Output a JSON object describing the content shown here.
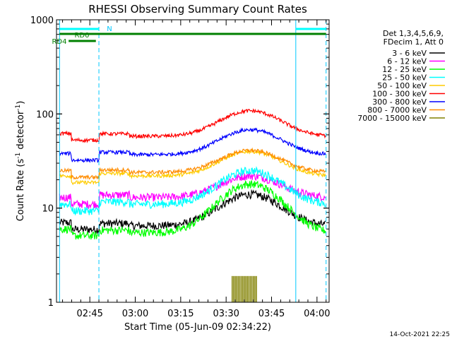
{
  "chart_data": {
    "type": "line",
    "title": "RHESSI Observing Summary Count Rates",
    "xlabel": "Start Time (05-Jun-09 02:34:22)",
    "ylabel_main": "Count Rate (s",
    "ylabel_sup1": "-1",
    "ylabel_mid": " detector",
    "ylabel_sup2": "-1",
    "ylabel_end": ")",
    "yscale": "log",
    "ylim": [
      1,
      1000
    ],
    "xlim_minutes": [
      0,
      90
    ],
    "y_ticks": [
      {
        "value": 1,
        "label": "1"
      },
      {
        "value": 10,
        "label": "10"
      },
      {
        "value": 100,
        "label": "100"
      },
      {
        "value": 1000,
        "label": "1000"
      }
    ],
    "x_ticks": [
      {
        "minute": 11,
        "label": "02:45"
      },
      {
        "minute": 26,
        "label": "03:00"
      },
      {
        "minute": 41,
        "label": "03:15"
      },
      {
        "minute": 56,
        "label": "03:30"
      },
      {
        "minute": 71,
        "label": "03:45"
      },
      {
        "minute": 86,
        "label": "04:00"
      }
    ],
    "legend_header": [
      "Det 1,3,4,5,6,9,",
      "FDecim 1, Att 0"
    ],
    "series": [
      {
        "name": "3 - 6 keV",
        "color": "#000000",
        "base": 6.5,
        "peak": 14,
        "early": 7
      },
      {
        "name": "6 - 12 keV",
        "color": "#ff00ff",
        "base": 13,
        "peak": 22,
        "early": 13
      },
      {
        "name": "12 - 25 keV",
        "color": "#00ff00",
        "base": 5.5,
        "peak": 18,
        "early": 6
      },
      {
        "name": "25 - 50 keV",
        "color": "#00ffff",
        "base": 11,
        "peak": 25,
        "early": 11
      },
      {
        "name": "50 - 100 keV",
        "color": "#ffcc00",
        "base": 22,
        "peak": 40,
        "early": 22
      },
      {
        "name": "100 - 300 keV",
        "color": "#ff0000",
        "base": 58,
        "peak": 108,
        "early": 62
      },
      {
        "name": "300 - 800 keV",
        "color": "#0000ff",
        "base": 37,
        "peak": 68,
        "early": 38
      },
      {
        "name": "800 - 7000 keV",
        "color": "#ff8c00",
        "base": 24,
        "peak": 41,
        "early": 25
      },
      {
        "name": "7000 - 15000 keV",
        "color": "#808000",
        "base": 0,
        "peak": 1.9,
        "early": 0
      }
    ],
    "annotations": {
      "n_label": "N",
      "rd0_label": "RD0",
      "rd4_label": "RD4",
      "dashed_markers_minutes": [
        14,
        89
      ],
      "solid_markers_minutes": [
        1,
        79
      ]
    },
    "timestamp": "14-Oct-2021 22:25"
  },
  "colors": {
    "night_bar": "#00ffff",
    "rd_bar": "#008000",
    "marker_line": "#00c8ff"
  }
}
